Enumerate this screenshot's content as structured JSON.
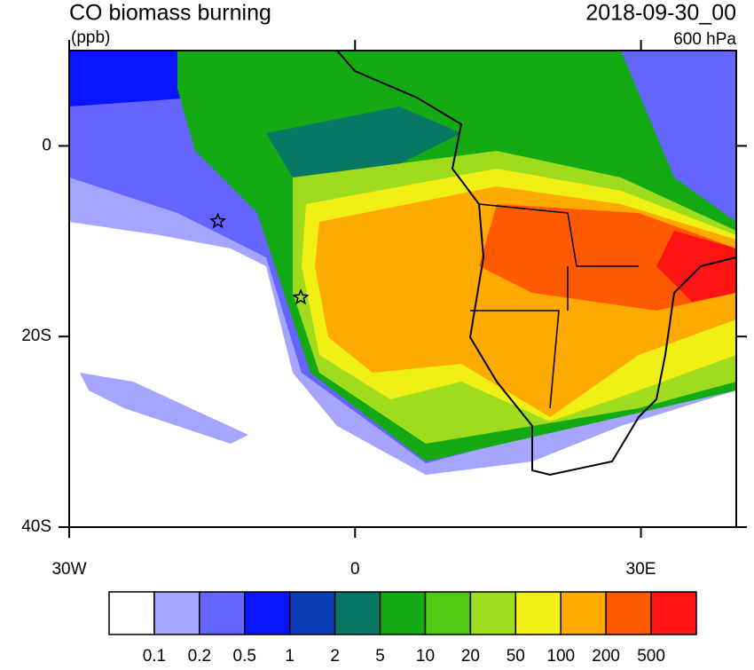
{
  "map": {
    "title": "CO biomass burning",
    "units": "(ppb)",
    "time": "2018-09-30_00",
    "level": "600 hPa",
    "xlim": [
      -30,
      40
    ],
    "ylim": [
      -40,
      10
    ],
    "xticks": [
      {
        "value": -30,
        "label": "30W"
      },
      0,
      {
        "value": 30,
        "label": "30E"
      }
    ],
    "yticks": [
      0,
      {
        "value": -20,
        "label": "20S"
      },
      {
        "value": -40,
        "label": "40S"
      }
    ],
    "markers": [
      {
        "lon": -14.4,
        "lat": -7.9
      },
      {
        "lon": -5.7,
        "lat": -15.9
      }
    ],
    "colorbar": {
      "levels": [
        0.1,
        0.2,
        0.5,
        1,
        2,
        5,
        10,
        20,
        50,
        100,
        200,
        500
      ],
      "colors": [
        "#ffffff",
        "#a5a5ff",
        "#6464ff",
        "#0a14ff",
        "#0a3cb4",
        "#087864",
        "#14aa14",
        "#50c814",
        "#a0dc1e",
        "#f0f014",
        "#ffaa00",
        "#ff5a00",
        "#ff1414"
      ]
    }
  }
}
